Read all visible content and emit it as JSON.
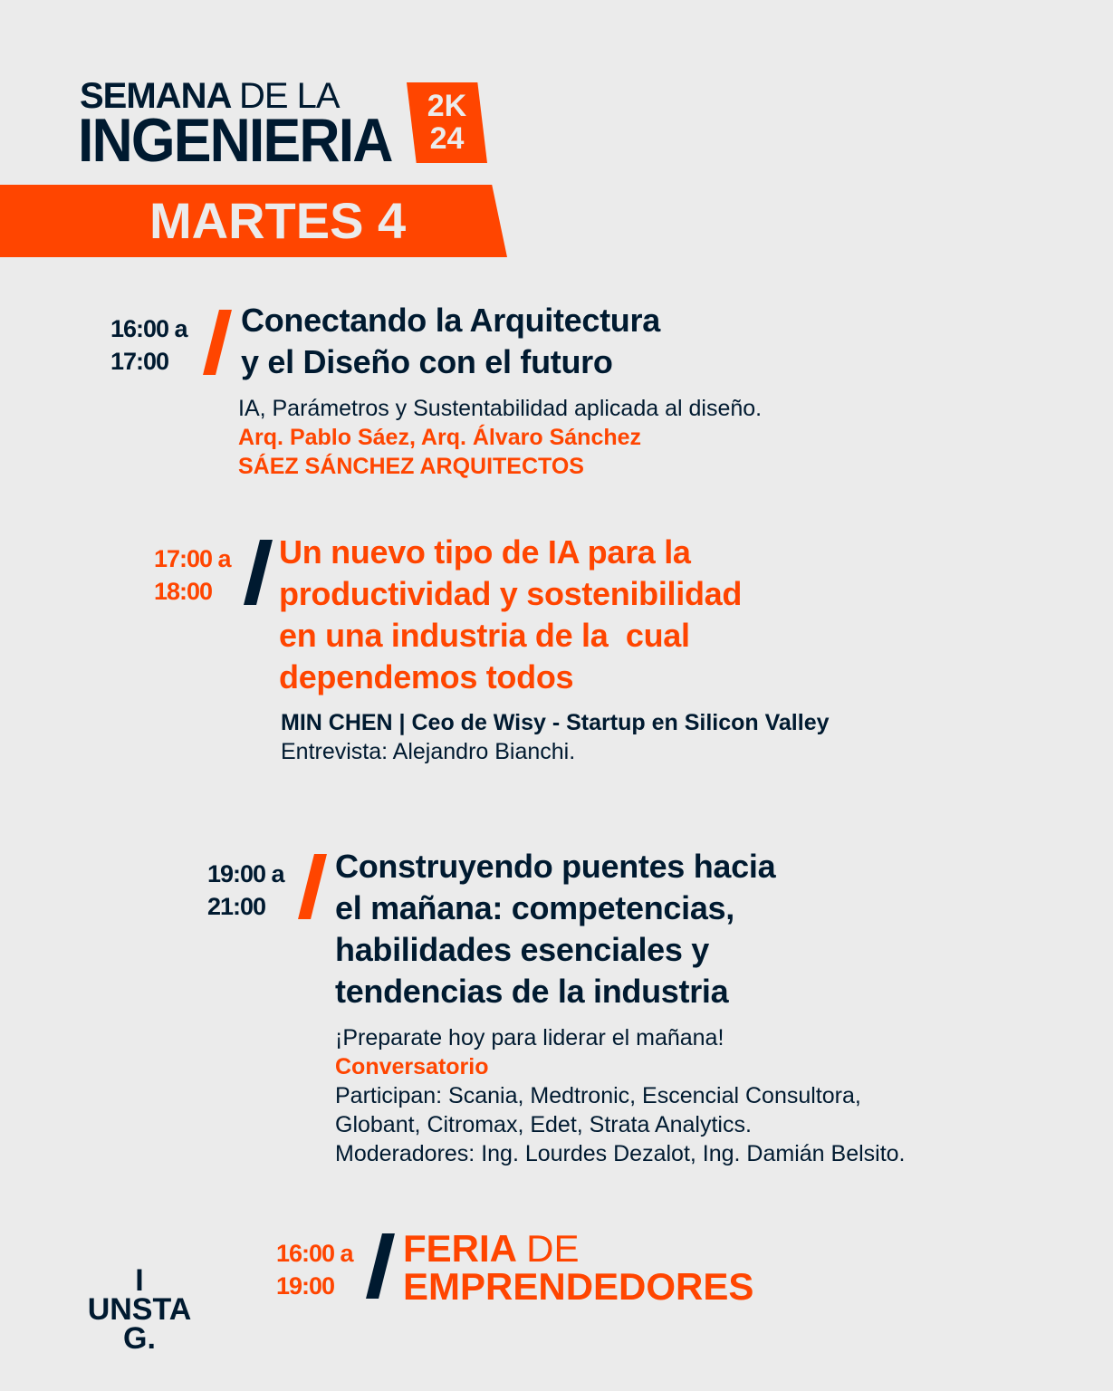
{
  "header": {
    "logo_line1_bold": "SEMANA",
    "logo_line1_light": "DE LA",
    "logo_line2": "INGENIERIA",
    "badge_top": "2K",
    "badge_bottom": "24",
    "day": "MARTES 4"
  },
  "colors": {
    "background": "#ebebeb",
    "navy": "#001a30",
    "orange": "#ff4500"
  },
  "sessions": [
    {
      "time_start": "16:00 a",
      "time_end": "17:00",
      "title": [
        "Conectando la Arquitectura",
        "y el Diseño con el futuro"
      ],
      "subtitle": "IA, Parámetros y Sustentabilidad aplicada al diseño.",
      "speakers": "Arq. Pablo Sáez, Arq. Álvaro Sánchez",
      "company": "SÁEZ SÁNCHEZ ARQUITECTOS"
    },
    {
      "time_start": "17:00 a",
      "time_end": "18:00",
      "title": [
        "Un nuevo tipo de IA para la",
        "productividad y sostenibilidad",
        "en una industria de la  cual",
        "dependemos todos"
      ],
      "speaker": "MIN CHEN | Ceo de Wisy - Startup en Silicon Valley",
      "interview": "Entrevista: Alejandro Bianchi."
    },
    {
      "time_start": "19:00 a",
      "time_end": "21:00",
      "title": [
        "Construyendo puentes hacia",
        "el mañana: competencias,",
        "habilidades esenciales y",
        "tendencias de la industria"
      ],
      "subtitle": "¡Preparate hoy para liderar el mañana!",
      "format": "Conversatorio",
      "participants": [
        "Participan: Scania, Medtronic, Escencial Consultora,",
        "Globant, Citromax, Edet, Strata Analytics."
      ],
      "moderators": "Moderadores: Ing. Lourdes Dezalot, Ing. Damián Belsito."
    },
    {
      "time_start": "16:00 a",
      "time_end": "19:00",
      "title_bold": "FERIA",
      "title_light": "DE",
      "title_line2": "EMPRENDEDORES"
    }
  ],
  "footer_logo": {
    "line1": "I",
    "line2": "UNSTA",
    "line3": "G."
  }
}
